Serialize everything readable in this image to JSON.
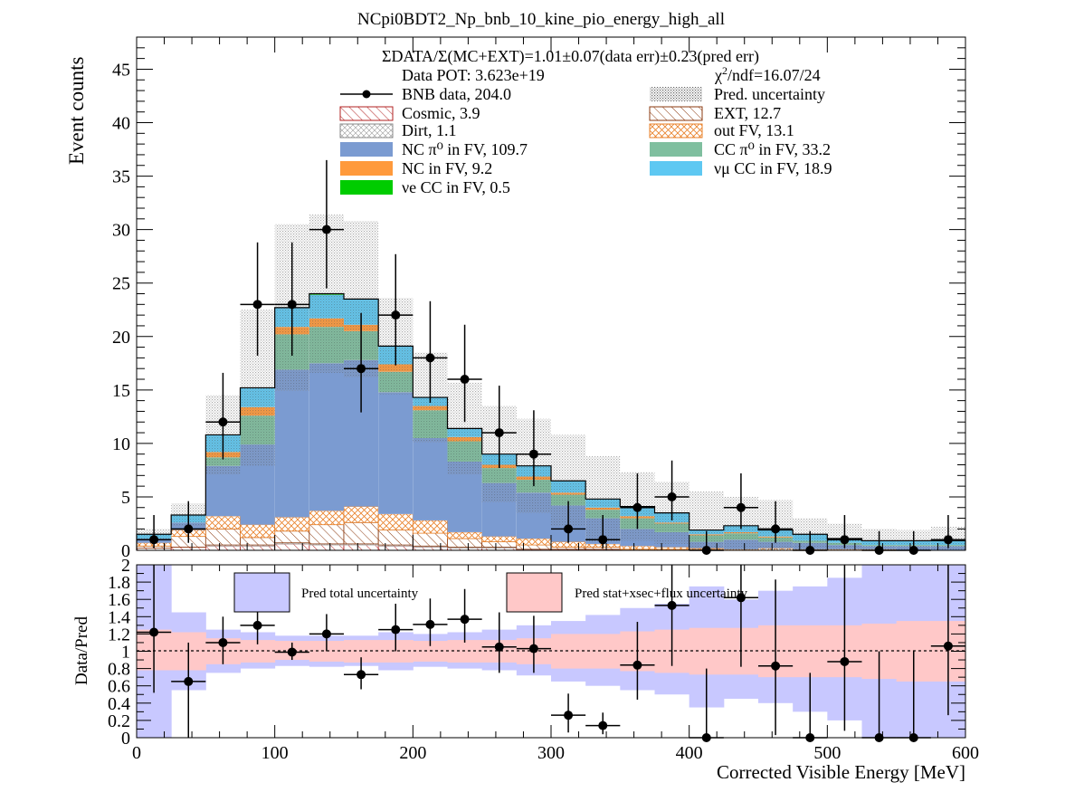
{
  "chart_data": [
    {
      "type": "bar",
      "stacked": true,
      "title": "NCpi0BDT2_Np_bnb_10_kine_pio_energy_high_all",
      "xlabel": "",
      "ylabel": "Event counts",
      "xlim": [
        0,
        600
      ],
      "ylim": [
        0,
        48
      ],
      "xticks": [
        0,
        100,
        200,
        300,
        400,
        500,
        600
      ],
      "yticks": [
        0,
        5,
        10,
        15,
        20,
        25,
        30,
        35,
        40,
        45
      ],
      "bin_edges": [
        0,
        25,
        50,
        75,
        100,
        125,
        150,
        175,
        200,
        225,
        250,
        275,
        300,
        325,
        350,
        375,
        400,
        425,
        450,
        475,
        500,
        525,
        550,
        575,
        600
      ],
      "annotations": {
        "ratio": "ΣDATA/Σ(MC+EXT)=1.01±0.07(data err)±0.23(pred err)",
        "pot": "Data POT: 3.623e+19",
        "chi2": "χ²/ndf=16.07/24"
      },
      "legend": {
        "placement": "top",
        "data": "BNB data, 204.0",
        "pred_unc": "Pred. uncertainty",
        "cosmic": "Cosmic, 3.9",
        "ext": "EXT, 12.7",
        "dirt": "Dirt, 1.1",
        "outfv": "out FV, 13.1",
        "ncpi0": "NC π⁰ in FV,  109.7",
        "ccpi0": "CC π⁰ in FV, 33.2",
        "nc": "NC in FV, 9.2",
        "numucc": "νμ CC in FV, 18.9",
        "nuecc": "νe CC in FV, 0.5"
      },
      "series": [
        {
          "name": "Cosmic, 3.9",
          "color": "#b22222",
          "pattern": "hatch",
          "values": [
            0.2,
            0.3,
            0.4,
            0.4,
            0.6,
            0.5,
            0.5,
            0.4,
            0.3,
            0.2,
            0.2,
            0.1,
            0.1,
            0.1,
            0,
            0,
            0,
            0,
            0,
            0,
            0,
            0,
            0,
            0
          ]
        },
        {
          "name": "Dirt, 1.1",
          "color": "#aaaaaa",
          "pattern": "crosshatch",
          "values": [
            0,
            0,
            0.1,
            0.1,
            0.1,
            0.1,
            0.1,
            0.1,
            0.1,
            0.1,
            0.1,
            0,
            0,
            0,
            0,
            0,
            0,
            0,
            0,
            0,
            0,
            0,
            0,
            0
          ]
        },
        {
          "name": "EXT, 12.7",
          "color": "#8b3a0f",
          "pattern": "hatch",
          "values": [
            0.2,
            1,
            1.5,
            0.7,
            1.1,
            1.8,
            2,
            1.4,
            1.2,
            0.8,
            0.5,
            0.4,
            0.2,
            0.2,
            0.1,
            0.1,
            0.1,
            0,
            0,
            0,
            0,
            0,
            0,
            0
          ]
        },
        {
          "name": "out FV, 13.1",
          "color": "#e8812a",
          "pattern": "crosshatch",
          "values": [
            0.3,
            0.6,
            1.2,
            1.2,
            1.3,
            1.3,
            1.5,
            1.5,
            1.2,
            0.6,
            0.5,
            0.6,
            0.5,
            0.3,
            0.3,
            0.2,
            0.1,
            0.1,
            0.2,
            0.1,
            0.1,
            0.1,
            0,
            0
          ]
        },
        {
          "name": "NC π⁰ in FV,  109.7",
          "color": "#7b9bd1",
          "values": [
            0.4,
            0.7,
            4.7,
            7.5,
            13.8,
            13.8,
            13.7,
            11.4,
            7.7,
            6.6,
            5,
            4.3,
            3.4,
            2.4,
            1.6,
            1.4,
            0.6,
            0.9,
            0.6,
            0.6,
            0.4,
            0.3,
            0.4,
            0.4
          ]
        },
        {
          "name": "CC π⁰ in FV, 33.2",
          "color": "#7fbf9f",
          "values": [
            0,
            0,
            0.8,
            2.7,
            3.3,
            3.4,
            2.7,
            1.9,
            2.6,
            1.9,
            1.4,
            1.2,
            1,
            0.8,
            1,
            0.8,
            0.6,
            0.6,
            0.4,
            0.2,
            0.2,
            0.1,
            0.1,
            0.1
          ]
        },
        {
          "name": "NC in FV, 9.2",
          "color": "#ff9a3c",
          "values": [
            0,
            0,
            0.5,
            0.8,
            0.7,
            0.8,
            0.6,
            0.7,
            0.4,
            0.4,
            0.3,
            0.3,
            0.2,
            0.2,
            0.2,
            0.1,
            0.1,
            0.1,
            0.1,
            0,
            0,
            0,
            0,
            0
          ]
        },
        {
          "name": "νμ CC in FV, 18.9",
          "color": "#5ec8f2",
          "values": [
            0.4,
            0.7,
            1.6,
            1.8,
            1.8,
            2.2,
            2.4,
            1.7,
            0.8,
            0.8,
            1,
            1,
            1.1,
            0.8,
            0.9,
            0.9,
            0.4,
            0.6,
            0.6,
            0.6,
            0.4,
            0.4,
            0.4,
            0.4
          ]
        },
        {
          "name": "νe CC in FV, 0.5",
          "color": "#00cc00",
          "values": [
            0,
            0,
            0,
            0,
            0,
            0.1,
            0,
            0,
            0,
            0,
            0,
            0,
            0,
            0,
            0,
            0,
            0,
            0,
            0,
            0,
            0,
            0,
            0,
            0
          ]
        }
      ],
      "pred_unc_high": [
        2,
        4.4,
        14.5,
        22.5,
        30.5,
        31.4,
        30.8,
        23.6,
        18.5,
        15.7,
        13.5,
        12.3,
        10.8,
        8.8,
        7.3,
        6.4,
        5.5,
        5,
        4.7,
        3,
        2.5,
        2,
        1.9,
        2.2
      ],
      "data": {
        "name": "BNB data, 204.0",
        "values": [
          1,
          2,
          12,
          23,
          23,
          30,
          17,
          22,
          18,
          16,
          11,
          9,
          2,
          1,
          4,
          5,
          0,
          4,
          2,
          0,
          1,
          0,
          0,
          1
        ],
        "err_low": [
          0.8,
          1.3,
          3.5,
          4.8,
          4.8,
          5.5,
          4.1,
          4.7,
          4.2,
          4,
          3.3,
          3,
          1.3,
          0.8,
          2,
          2.2,
          0,
          2,
          1.3,
          0,
          0.8,
          0,
          0,
          0.8
        ],
        "err_high": [
          2.3,
          2.6,
          4.6,
          5.8,
          5.8,
          6.5,
          5.2,
          5.7,
          5.3,
          5.1,
          4.4,
          4.1,
          2.6,
          2.3,
          3.2,
          3.4,
          1.8,
          3.2,
          2.6,
          1.8,
          2.3,
          1.8,
          1.8,
          2.3
        ]
      }
    },
    {
      "type": "scatter",
      "xlabel": "Corrected Visible Energy [MeV]",
      "ylabel": "Data/Pred",
      "xlim": [
        0,
        600
      ],
      "ylim": [
        0,
        2
      ],
      "xticks": [
        0,
        100,
        200,
        300,
        400,
        500,
        600
      ],
      "yticks": [
        0,
        0.2,
        0.4,
        0.6,
        0.8,
        1,
        1.2,
        1.4,
        1.6,
        1.8,
        2
      ],
      "reference_line": 1,
      "legend": {
        "total": "Pred total uncertainty",
        "stat": "Pred stat+xsec+flux uncertainty"
      },
      "band_total": {
        "color": "#c8c8ff",
        "low": [
          0,
          0.55,
          0.75,
          0.8,
          0.83,
          0.82,
          0.83,
          0.78,
          0.82,
          0.8,
          0.78,
          0.72,
          0.65,
          0.6,
          0.55,
          0.5,
          0.35,
          0.45,
          0.4,
          0.3,
          0.2,
          0,
          0,
          0
        ],
        "high": [
          2,
          1.45,
          1.25,
          1.22,
          1.18,
          1.18,
          1.18,
          1.22,
          1.2,
          1.22,
          1.25,
          1.3,
          1.35,
          1.42,
          1.5,
          1.55,
          1.75,
          1.6,
          1.7,
          1.75,
          1.85,
          2,
          2,
          2
        ]
      },
      "band_stat": {
        "color": "#ffc8c8",
        "low": [
          0.78,
          0.78,
          0.85,
          0.87,
          0.9,
          0.88,
          0.87,
          0.87,
          0.88,
          0.87,
          0.87,
          0.85,
          0.8,
          0.8,
          0.77,
          0.75,
          0.73,
          0.73,
          0.7,
          0.7,
          0.7,
          0.68,
          0.65,
          0.65
        ],
        "high": [
          1.25,
          1.22,
          1.15,
          1.13,
          1.12,
          1.12,
          1.13,
          1.13,
          1.12,
          1.13,
          1.13,
          1.15,
          1.2,
          1.2,
          1.23,
          1.25,
          1.27,
          1.27,
          1.3,
          1.3,
          1.3,
          1.32,
          1.35,
          1.35
        ]
      },
      "points": {
        "y": [
          1.22,
          0.65,
          1.1,
          1.3,
          0.99,
          1.2,
          0.73,
          1.25,
          1.31,
          1.37,
          1.05,
          1.03,
          0.26,
          0.14,
          0.84,
          1.53,
          0,
          1.62,
          0.83,
          0,
          0.88,
          0,
          0,
          1.06
        ],
        "err_low": [
          0.7,
          0.65,
          0.25,
          0.22,
          0.09,
          0.2,
          0.17,
          0.25,
          0.25,
          0.27,
          0.3,
          0.28,
          0.2,
          0.1,
          0.4,
          0.7,
          0,
          0.8,
          0.8,
          0,
          0.8,
          0,
          0,
          0.8
        ],
        "err_high": [
          1,
          0.45,
          0.3,
          0.25,
          0.11,
          0.23,
          0.2,
          0.3,
          0.3,
          0.35,
          0.4,
          0.38,
          0.25,
          0.15,
          0.5,
          0.8,
          0.8,
          0.85,
          1,
          0.75,
          1.2,
          1,
          1,
          1.2
        ]
      }
    }
  ]
}
